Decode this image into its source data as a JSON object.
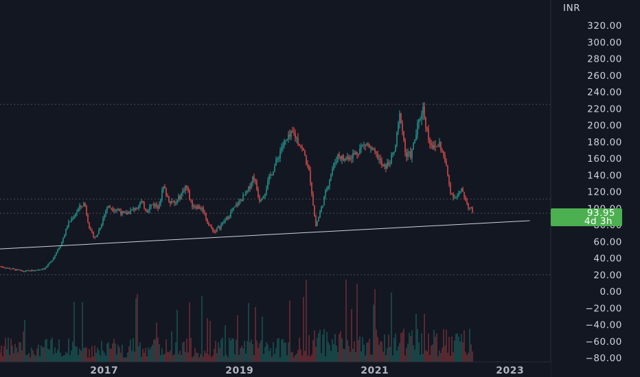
{
  "chart_data": {
    "type": "candlestick",
    "currency": "INR",
    "y_range": [
      -80,
      320
    ],
    "y_ticks": [
      "320.00",
      "300.00",
      "280.00",
      "260.00",
      "240.00",
      "220.00",
      "200.00",
      "180.00",
      "160.00",
      "140.00",
      "120.00",
      "100.00",
      "80.00",
      "60.00",
      "40.00",
      "20.00",
      "0.00",
      "−20.00",
      "−40.00",
      "−60.00",
      "−80.00"
    ],
    "x_ticks": [
      "2017",
      "2019",
      "2021",
      "2023"
    ],
    "last_price": "93.95",
    "countdown": "4d 3h",
    "horizontal_levels": [
      225,
      111,
      93.95,
      20
    ],
    "trendline": {
      "start": [
        "2015-07",
        51
      ],
      "end": [
        "2023-05",
        85
      ]
    },
    "price_path": [
      [
        "2015-07",
        30
      ],
      [
        "2015-09",
        27
      ],
      [
        "2015-11",
        24
      ],
      [
        "2016-01",
        25
      ],
      [
        "2016-03",
        28
      ],
      [
        "2016-04",
        35
      ],
      [
        "2016-06",
        60
      ],
      [
        "2016-07",
        80
      ],
      [
        "2016-09",
        100
      ],
      [
        "2016-10",
        106
      ],
      [
        "2016-11",
        72
      ],
      [
        "2016-12",
        64
      ],
      [
        "2017-01",
        82
      ],
      [
        "2017-02",
        102
      ],
      [
        "2017-04",
        98
      ],
      [
        "2017-05",
        92
      ],
      [
        "2017-07",
        100
      ],
      [
        "2017-08",
        108
      ],
      [
        "2017-09",
        97
      ],
      [
        "2017-10",
        105
      ],
      [
        "2017-11",
        102
      ],
      [
        "2017-12",
        125
      ],
      [
        "2018-01",
        110
      ],
      [
        "2018-02",
        105
      ],
      [
        "2018-03",
        115
      ],
      [
        "2018-04",
        128
      ],
      [
        "2018-05",
        104
      ],
      [
        "2018-06",
        102
      ],
      [
        "2018-07",
        99
      ],
      [
        "2018-08",
        80
      ],
      [
        "2018-09",
        72
      ],
      [
        "2018-10",
        78
      ],
      [
        "2018-11",
        86
      ],
      [
        "2018-12",
        95
      ],
      [
        "2019-01",
        104
      ],
      [
        "2019-02",
        112
      ],
      [
        "2019-03",
        121
      ],
      [
        "2019-04",
        140
      ],
      [
        "2019-05",
        110
      ],
      [
        "2019-06",
        120
      ],
      [
        "2019-07",
        140
      ],
      [
        "2019-08",
        155
      ],
      [
        "2019-09",
        175
      ],
      [
        "2019-10",
        182
      ],
      [
        "2019-11",
        190
      ],
      [
        "2019-12",
        180
      ],
      [
        "2020-01",
        165
      ],
      [
        "2020-02",
        138
      ],
      [
        "2020-03",
        78
      ],
      [
        "2020-04",
        100
      ],
      [
        "2020-05",
        125
      ],
      [
        "2020-06",
        148
      ],
      [
        "2020-07",
        165
      ],
      [
        "2020-08",
        158
      ],
      [
        "2020-09",
        163
      ],
      [
        "2020-10",
        165
      ],
      [
        "2020-11",
        173
      ],
      [
        "2020-12",
        178
      ],
      [
        "2021-01",
        168
      ],
      [
        "2021-02",
        162
      ],
      [
        "2021-03",
        148
      ],
      [
        "2021-04",
        154
      ],
      [
        "2021-05",
        168
      ],
      [
        "2021-06",
        215
      ],
      [
        "2021-07",
        162
      ],
      [
        "2021-08",
        165
      ],
      [
        "2021-09",
        195
      ],
      [
        "2021-10",
        222
      ],
      [
        "2021-11",
        185
      ],
      [
        "2021-12",
        172
      ],
      [
        "2022-01",
        178
      ],
      [
        "2022-02",
        155
      ],
      [
        "2022-03",
        118
      ],
      [
        "2022-04",
        113
      ],
      [
        "2022-05",
        122
      ],
      [
        "2022-06",
        103
      ],
      [
        "2022-07",
        93.95
      ]
    ]
  }
}
